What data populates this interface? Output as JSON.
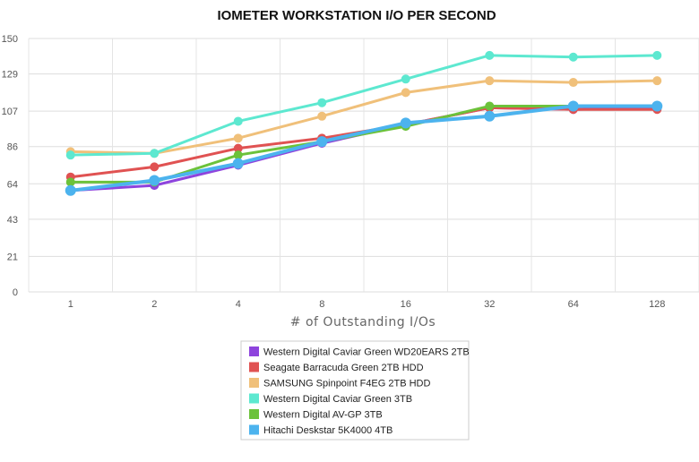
{
  "chart_data": {
    "type": "line",
    "title": "IOMETER WORKSTATION I/O PER SECOND",
    "xlabel": "# of Outstanding I/Os",
    "ylabel": "",
    "categories": [
      "1",
      "2",
      "4",
      "8",
      "16",
      "32",
      "64",
      "128"
    ],
    "y_ticks": [
      0,
      21,
      43,
      64,
      86,
      107,
      129,
      150
    ],
    "ylim": [
      0,
      150
    ],
    "grid": true,
    "legend_position": "bottom-center",
    "series": [
      {
        "name": "Western Digital Caviar Green WD20EARS 2TB",
        "color": "#8e44dd",
        "values": [
          60,
          63,
          75,
          88,
          99,
          109,
          108,
          109
        ]
      },
      {
        "name": "Seagate Barracuda Green 2TB HDD",
        "color": "#e05252",
        "values": [
          68,
          74,
          85,
          91,
          99,
          109,
          108,
          108
        ]
      },
      {
        "name": "SAMSUNG Spinpoint F4EG 2TB HDD",
        "color": "#f0c07a",
        "values": [
          83,
          82,
          91,
          104,
          118,
          125,
          124,
          125
        ]
      },
      {
        "name": "Western Digital Caviar Green 3TB",
        "color": "#5de8d0",
        "values": [
          81,
          82,
          101,
          112,
          126,
          140,
          139,
          140
        ]
      },
      {
        "name": "Western Digital AV-GP 3TB",
        "color": "#6cc23a",
        "values": [
          65,
          65,
          81,
          89,
          98,
          110,
          110,
          110
        ]
      },
      {
        "name": "Hitachi Deskstar 5K4000 4TB",
        "color": "#4cb3ee",
        "values": [
          60,
          66,
          76,
          89,
          100,
          104,
          110,
          110
        ]
      }
    ]
  }
}
